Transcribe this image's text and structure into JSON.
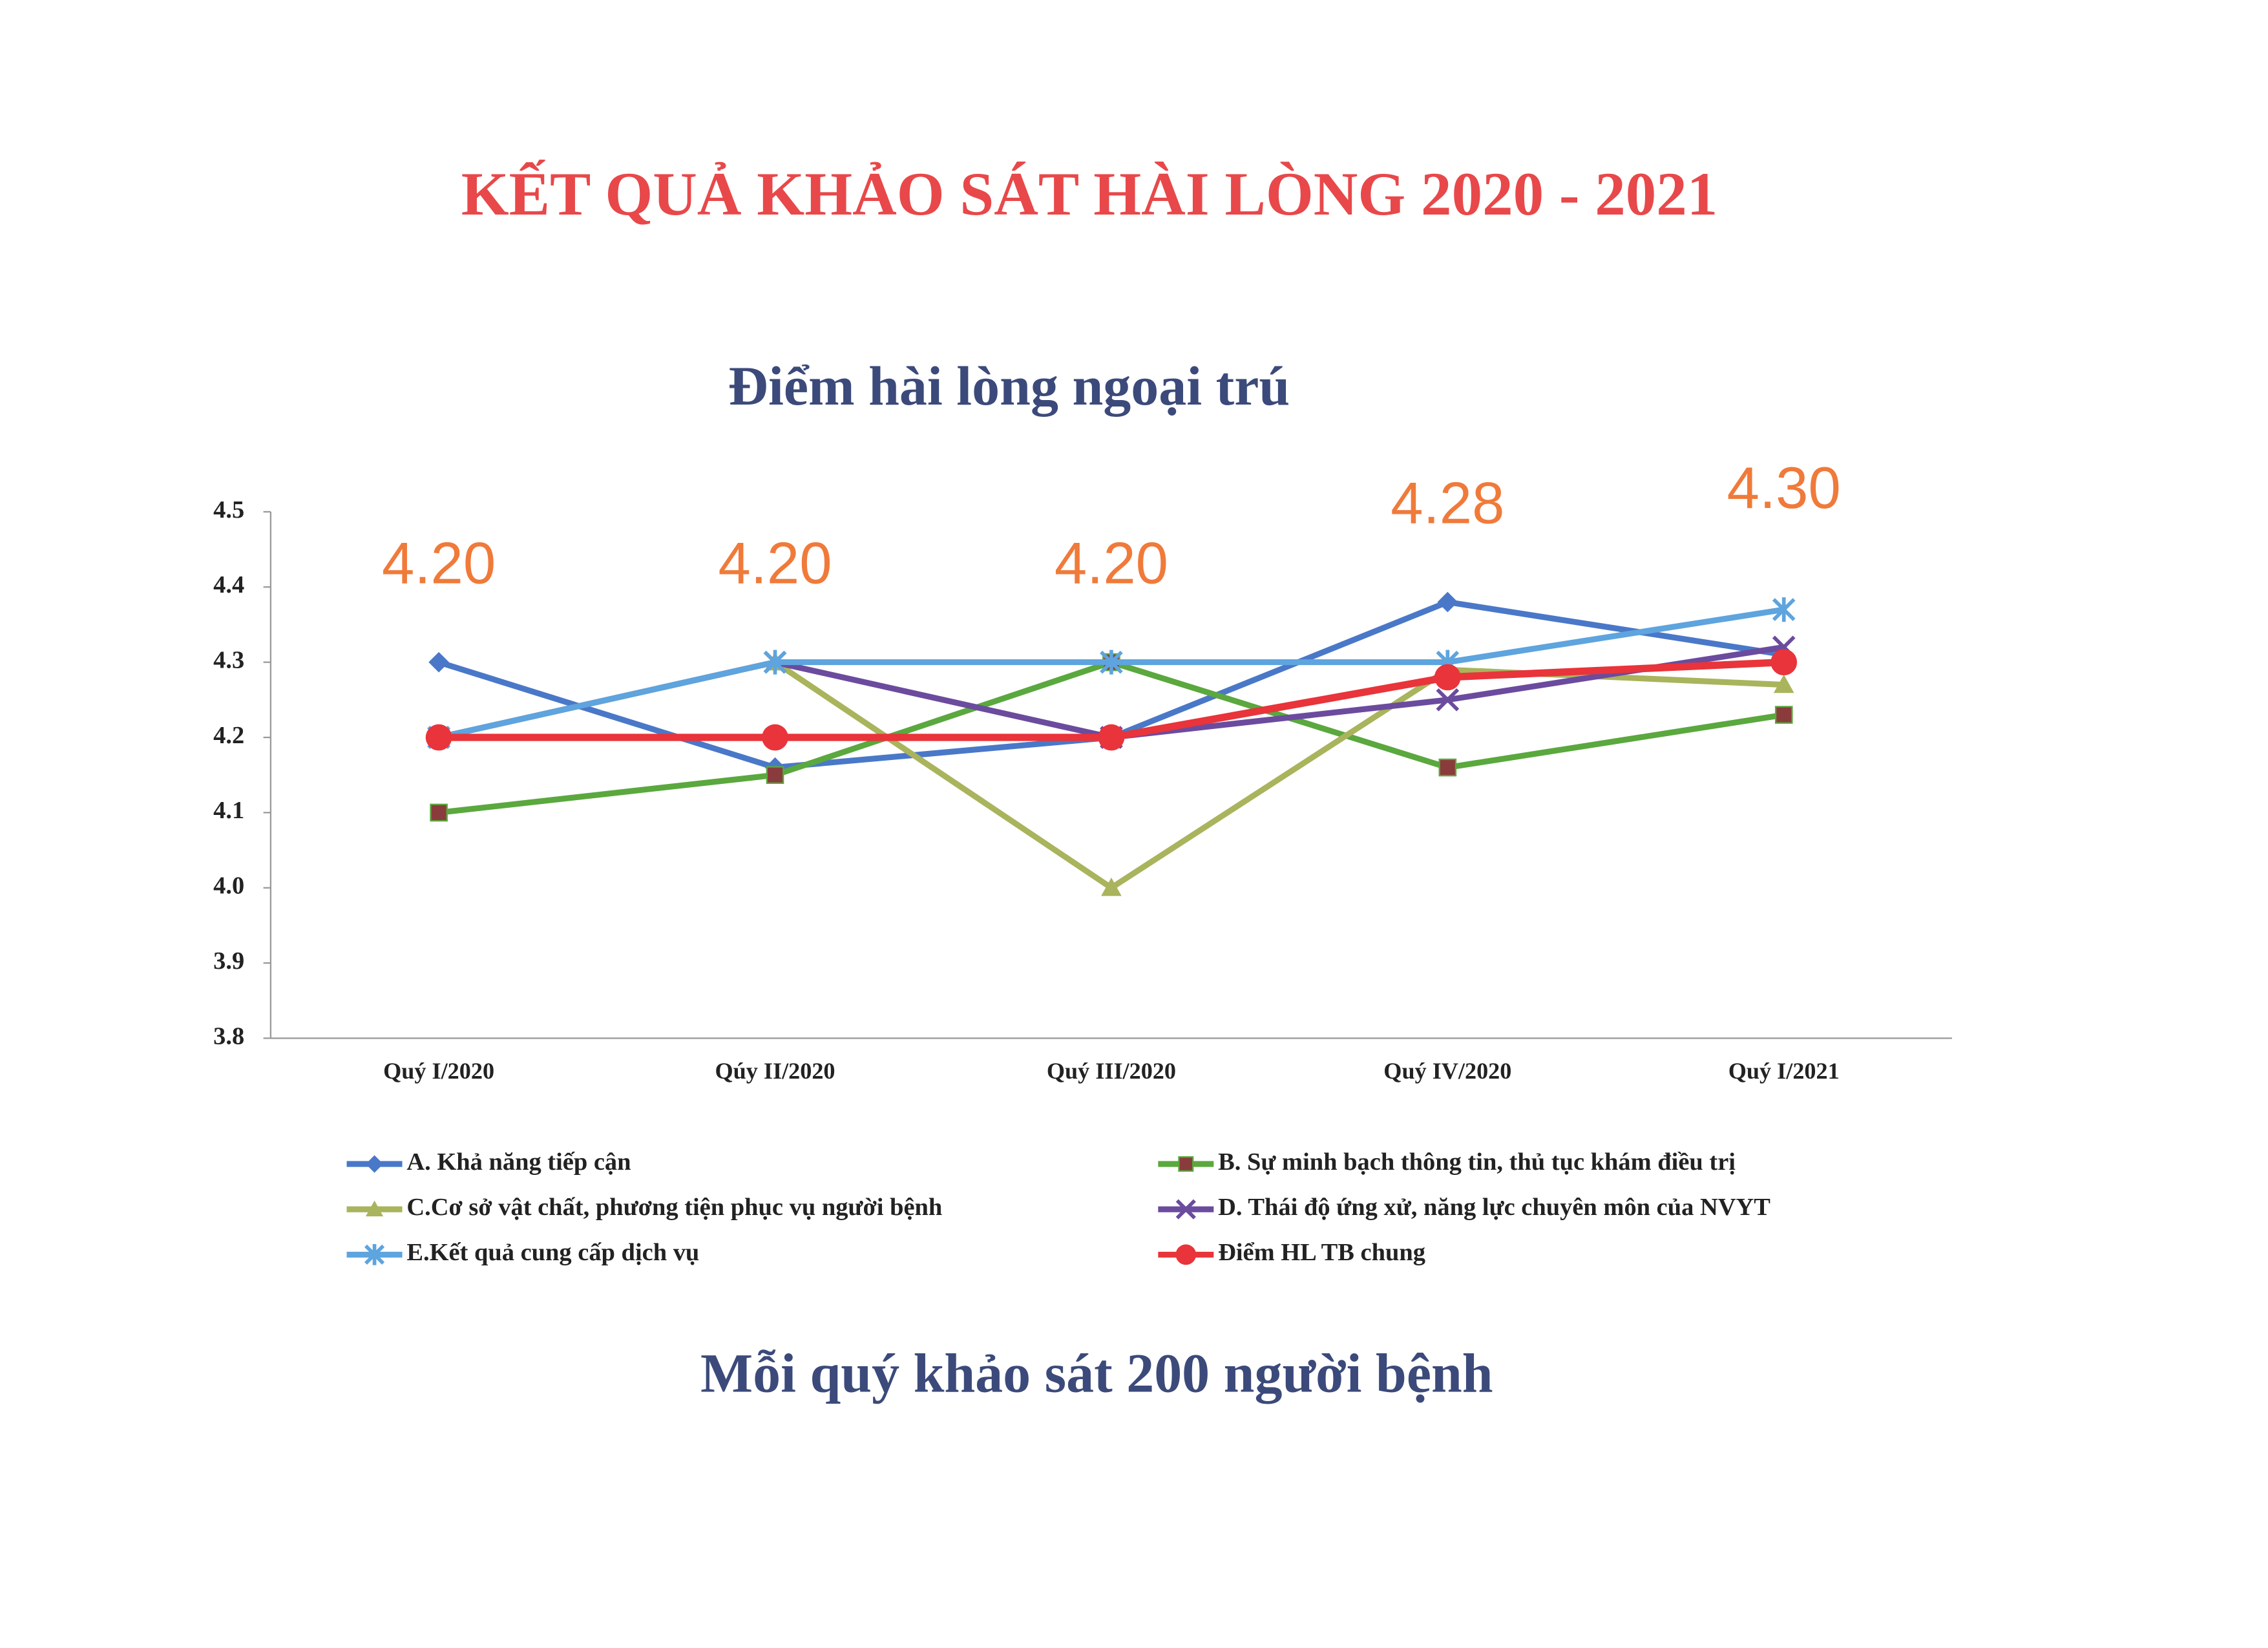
{
  "chart_data": {
    "type": "line",
    "heading": "KẾT QUẢ KHẢO SÁT HÀI LÒNG  2020 - 2021",
    "title": "Điểm hài lòng ngoại trú",
    "footer": "Mỗi quý khảo sát 200 người bệnh",
    "categories": [
      "Quý I/2020",
      "Qúy II/2020",
      "Quý III/2020",
      "Quý IV/2020",
      "Quý I/2021"
    ],
    "ylim": [
      3.8,
      4.5
    ],
    "yticks": [
      3.8,
      3.9,
      {
        "value": 4,
        "label": "4.0"
      },
      4.1,
      4.2,
      4.3,
      4.4,
      4.5
    ],
    "grid": false,
    "legend": "bottom",
    "series": [
      {
        "name": "A. Khả năng tiếp cận",
        "color": "#4a78c8",
        "marker": "diamond",
        "values": [
          4.3,
          4.16,
          4.2,
          4.38,
          4.31
        ]
      },
      {
        "name": "B. Sự minh bạch thông tin, thủ tục khám điều trị",
        "color": "#5aa83e",
        "marker": "square",
        "values": [
          4.1,
          4.15,
          4.3,
          4.16,
          4.23
        ]
      },
      {
        "name": "C.Cơ sở vật chất, phương tiện phục vụ người bệnh",
        "color": "#a9b45c",
        "marker": "triangle",
        "values": [
          4.2,
          4.3,
          4.0,
          4.29,
          4.27
        ]
      },
      {
        "name": "D. Thái độ ứng xử, năng lực chuyên môn của NVYT",
        "color": "#6b4b9e",
        "marker": "x",
        "values": [
          4.2,
          4.3,
          4.2,
          4.25,
          4.32
        ]
      },
      {
        "name": "E.Kết quả cung cấp dịch vụ",
        "color": "#5ea4de",
        "marker": "star",
        "values": [
          4.2,
          4.3,
          4.3,
          4.3,
          4.37
        ]
      },
      {
        "name": "Điểm HL TB chung",
        "color": "#e8343a",
        "marker": "circle",
        "values": [
          4.2,
          4.2,
          4.2,
          4.28,
          4.3
        ],
        "value_labels": [
          "4.20",
          "4.20",
          "4.20",
          "4.28",
          "4.30"
        ]
      }
    ]
  }
}
